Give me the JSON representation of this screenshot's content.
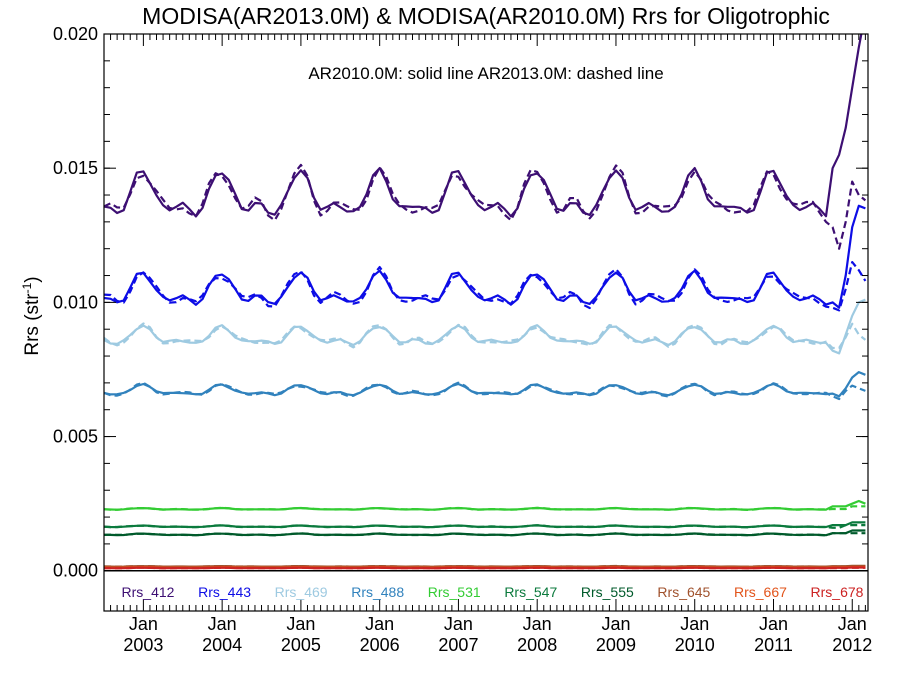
{
  "chart_data": {
    "type": "line",
    "title": "MODISA(AR2013.0M) & MODISA(AR2010.0M)  Rrs for Oligotrophic",
    "annotation": "AR2010.0M: solid line   AR2013.0M: dashed line",
    "ylabel": "Rrs (str",
    "ylabel_sup": "-1",
    "ylabel_close": ")",
    "ylim": [
      -0.0015,
      0.02
    ],
    "xlim": [
      2002.5,
      2012.2
    ],
    "yticks": [
      {
        "value": 0.0,
        "label": "0.000"
      },
      {
        "value": 0.005,
        "label": "0.005"
      },
      {
        "value": 0.01,
        "label": "0.010"
      },
      {
        "value": 0.015,
        "label": "0.015"
      },
      {
        "value": 0.02,
        "label": "0.020"
      }
    ],
    "xticks": [
      {
        "value": 2003,
        "month": "Jan",
        "year": "2003"
      },
      {
        "value": 2004,
        "month": "Jan",
        "year": "2004"
      },
      {
        "value": 2005,
        "month": "Jan",
        "year": "2005"
      },
      {
        "value": 2006,
        "month": "Jan",
        "year": "2006"
      },
      {
        "value": 2007,
        "month": "Jan",
        "year": "2007"
      },
      {
        "value": 2008,
        "month": "Jan",
        "year": "2008"
      },
      {
        "value": 2009,
        "month": "Jan",
        "year": "2009"
      },
      {
        "value": 2010,
        "month": "Jan",
        "year": "2010"
      },
      {
        "value": 2011,
        "month": "Jan",
        "year": "2011"
      },
      {
        "value": 2012,
        "month": "Jan",
        "year": "2012"
      }
    ],
    "x_start": "2002-07",
    "x_step_months": 1,
    "series": [
      {
        "name": "Rrs_412",
        "color": "#3d0f73",
        "mean": 0.0139,
        "amp": 0.00085,
        "phase": 0.0,
        "solid_tail": [
          0.015,
          0.0155,
          0.0165,
          0.018,
          0.0195,
          0.0208
        ],
        "dashed_tail": [
          0.0128,
          0.012,
          0.013,
          0.0145,
          0.014,
          0.0138
        ]
      },
      {
        "name": "Rrs_443",
        "color": "#0d0de6",
        "mean": 0.0104,
        "amp": 0.0006,
        "phase": 0.0,
        "solid_tail": [
          0.01,
          0.0098,
          0.011,
          0.0128,
          0.0136,
          0.0135
        ],
        "dashed_tail": [
          0.0098,
          0.0097,
          0.0105,
          0.0115,
          0.0112,
          0.0108
        ]
      },
      {
        "name": "Rrs_469",
        "color": "#9ecae1",
        "mean": 0.0087,
        "amp": 0.00035,
        "phase": 0.0,
        "solid_tail": [
          0.0082,
          0.0081,
          0.0088,
          0.0095,
          0.01,
          0.0101
        ],
        "dashed_tail": [
          0.0083,
          0.0083,
          0.0087,
          0.0092,
          0.0088,
          0.0086
        ]
      },
      {
        "name": "Rrs_488",
        "color": "#3182bd",
        "mean": 0.0067,
        "amp": 0.0002,
        "phase": 0.0,
        "solid_tail": [
          0.0066,
          0.0065,
          0.0068,
          0.0072,
          0.0074,
          0.0073
        ],
        "dashed_tail": [
          0.0065,
          0.0064,
          0.0067,
          0.0069,
          0.0068,
          0.0067
        ]
      },
      {
        "name": "Rrs_531",
        "color": "#33cc33",
        "mean": 0.0023,
        "amp": 3e-05,
        "phase": 0.0,
        "solid_tail": [
          0.0024,
          0.0024,
          0.0024,
          0.0025,
          0.0026,
          0.0025
        ],
        "dashed_tail": [
          0.0023,
          0.0023,
          0.0023,
          0.0024,
          0.0024,
          0.0024
        ]
      },
      {
        "name": "Rrs_547",
        "color": "#0b7a3d",
        "mean": 0.00165,
        "amp": 3e-05,
        "phase": 0.0,
        "solid_tail": [
          0.0017,
          0.0017,
          0.0017,
          0.0018,
          0.0018,
          0.0018
        ],
        "dashed_tail": [
          0.0016,
          0.0016,
          0.0017,
          0.0017,
          0.0017,
          0.0017
        ]
      },
      {
        "name": "Rrs_555",
        "color": "#005a2b",
        "mean": 0.00135,
        "amp": 3e-05,
        "phase": 0.0,
        "solid_tail": [
          0.0014,
          0.0014,
          0.0014,
          0.0015,
          0.0015,
          0.0015
        ],
        "dashed_tail": [
          0.0014,
          0.0014,
          0.0014,
          0.0014,
          0.0014,
          0.0014
        ]
      },
      {
        "name": "Rrs_645",
        "color": "#a0522d",
        "mean": 0.00016,
        "amp": 1e-05,
        "phase": 0.0,
        "solid_tail": [
          0.00017,
          0.00017,
          0.00017,
          0.00018,
          0.00018,
          0.00018
        ],
        "dashed_tail": [
          0.00016,
          0.00016,
          0.00016,
          0.00017,
          0.00017,
          0.00017
        ]
      },
      {
        "name": "Rrs_667",
        "color": "#e2541b",
        "mean": 0.00012,
        "amp": 1e-05,
        "phase": 0.0,
        "solid_tail": [
          0.00013,
          0.00013,
          0.00013,
          0.00014,
          0.00014,
          0.00014
        ],
        "dashed_tail": [
          0.00012,
          0.00012,
          0.00012,
          0.00013,
          0.00013,
          0.00013
        ]
      },
      {
        "name": "Rrs_678",
        "color": "#cc2222",
        "mean": 0.0001,
        "amp": 1e-05,
        "phase": 0.0,
        "solid_tail": [
          0.00011,
          0.00011,
          0.00011,
          0.00012,
          0.00012,
          0.00012
        ],
        "dashed_tail": [
          0.0001,
          0.0001,
          0.0001,
          0.00011,
          0.00011,
          0.00011
        ]
      }
    ],
    "zero_line": {
      "color": "#000000"
    },
    "axis_color": "#000000"
  }
}
